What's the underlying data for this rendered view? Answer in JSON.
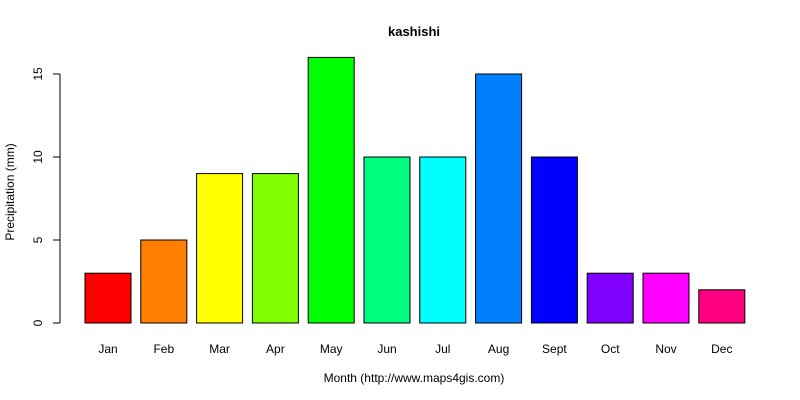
{
  "chart_data": {
    "type": "bar",
    "title": "kashishi",
    "xlabel": "Month (http://www.maps4gis.com)",
    "ylabel": "Precipitation (mm)",
    "categories": [
      "Jan",
      "Feb",
      "Mar",
      "Apr",
      "May",
      "Jun",
      "Jul",
      "Aug",
      "Sept",
      "Oct",
      "Nov",
      "Dec"
    ],
    "values": [
      3,
      5,
      9,
      9,
      16,
      10,
      10,
      15,
      10,
      3,
      3,
      2
    ],
    "colors": [
      "#FF0000",
      "#FF8000",
      "#FFFF00",
      "#80FF00",
      "#00FF00",
      "#00FF80",
      "#00FFFF",
      "#0080FF",
      "#0000FF",
      "#8000FF",
      "#FF00FF",
      "#FF0080"
    ],
    "yticks": [
      0,
      5,
      10,
      15
    ],
    "ylim": [
      0,
      16
    ],
    "grid": false,
    "legend": "none"
  }
}
